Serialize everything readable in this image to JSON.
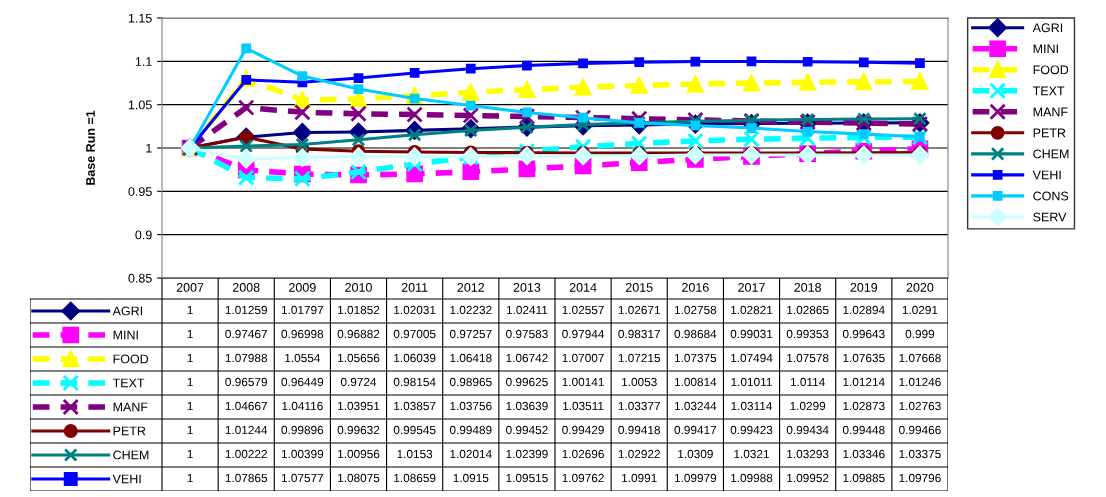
{
  "chart_data": {
    "type": "line",
    "ylabel": "Base Run =1",
    "categories": [
      "2007",
      "2008",
      "2009",
      "2010",
      "2011",
      "2012",
      "2013",
      "2014",
      "2015",
      "2016",
      "2017",
      "2018",
      "2019",
      "2020"
    ],
    "ylim": [
      0.85,
      1.15
    ],
    "yticks": [
      0.85,
      0.9,
      0.95,
      1,
      1.05,
      1.1,
      1.15
    ],
    "grid": "y",
    "legend": "right",
    "series": [
      {
        "name": "AGRI",
        "color": "#000080",
        "marker": "diamond",
        "line_style": "solid",
        "values": [
          1,
          1.01259,
          1.01797,
          1.01852,
          1.02031,
          1.02232,
          1.02411,
          1.02557,
          1.02671,
          1.02758,
          1.02821,
          1.02865,
          1.02894,
          1.0291
        ],
        "value_labels": [
          "1",
          "1.01259",
          "1.01797",
          "1.01852",
          "1.02031",
          "1.02232",
          "1.02411",
          "1.02557",
          "1.02671",
          "1.02758",
          "1.02821",
          "1.02865",
          "1.02894",
          "1.0291"
        ]
      },
      {
        "name": "MINI",
        "color": "#ff00ff",
        "marker": "square",
        "line_style": "dashed",
        "values": [
          1,
          0.97467,
          0.96998,
          0.96882,
          0.97005,
          0.97257,
          0.97583,
          0.97944,
          0.98317,
          0.98684,
          0.99031,
          0.99353,
          0.99643,
          0.999
        ],
        "value_labels": [
          "1",
          "0.97467",
          "0.96998",
          "0.96882",
          "0.97005",
          "0.97257",
          "0.97583",
          "0.97944",
          "0.98317",
          "0.98684",
          "0.99031",
          "0.99353",
          "0.99643",
          "0.999"
        ]
      },
      {
        "name": "FOOD",
        "color": "#ffff00",
        "marker": "triangle",
        "line_style": "dashed",
        "values": [
          1,
          1.07988,
          1.0554,
          1.05656,
          1.06039,
          1.06418,
          1.06742,
          1.07007,
          1.07215,
          1.07375,
          1.07494,
          1.07578,
          1.07635,
          1.07668
        ],
        "value_labels": [
          "1",
          "1.07988",
          "1.0554",
          "1.05656",
          "1.06039",
          "1.06418",
          "1.06742",
          "1.07007",
          "1.07215",
          "1.07375",
          "1.07494",
          "1.07578",
          "1.07635",
          "1.07668"
        ]
      },
      {
        "name": "TEXT",
        "color": "#00ffff",
        "marker": "cross",
        "line_style": "dashed",
        "values": [
          1,
          0.96579,
          0.96449,
          0.9724,
          0.98154,
          0.98965,
          0.99625,
          1.00141,
          1.0053,
          1.00814,
          1.01011,
          1.0114,
          1.01214,
          1.01246
        ],
        "value_labels": [
          "1",
          "0.96579",
          "0.96449",
          "0.9724",
          "0.98154",
          "0.98965",
          "0.99625",
          "1.00141",
          "1.0053",
          "1.00814",
          "1.01011",
          "1.0114",
          "1.01214",
          "1.01246"
        ]
      },
      {
        "name": "MANF",
        "color": "#800080",
        "marker": "cross",
        "line_style": "dashed",
        "values": [
          1,
          1.04667,
          1.04116,
          1.03951,
          1.03857,
          1.03756,
          1.03639,
          1.03511,
          1.03377,
          1.03244,
          1.03114,
          1.0299,
          1.02873,
          1.02763
        ],
        "value_labels": [
          "1",
          "1.04667",
          "1.04116",
          "1.03951",
          "1.03857",
          "1.03756",
          "1.03639",
          "1.03511",
          "1.03377",
          "1.03244",
          "1.03114",
          "1.0299",
          "1.02873",
          "1.02763"
        ]
      },
      {
        "name": "PETR",
        "color": "#800000",
        "marker": "circle",
        "line_style": "solid",
        "values": [
          1,
          1.01244,
          0.99896,
          0.99632,
          0.99545,
          0.99489,
          0.99452,
          0.99429,
          0.99418,
          0.99417,
          0.99423,
          0.99434,
          0.99448,
          0.99466
        ],
        "value_labels": [
          "1",
          "1.01244",
          "0.99896",
          "0.99632",
          "0.99545",
          "0.99489",
          "0.99452",
          "0.99429",
          "0.99418",
          "0.99417",
          "0.99423",
          "0.99434",
          "0.99448",
          "0.99466"
        ]
      },
      {
        "name": "CHEM",
        "color": "#008080",
        "marker": "cross",
        "line_style": "solid",
        "values": [
          1,
          1.00222,
          1.00399,
          1.00956,
          1.0153,
          1.02014,
          1.02399,
          1.02696,
          1.02922,
          1.0309,
          1.0321,
          1.03293,
          1.03346,
          1.03375
        ],
        "value_labels": [
          "1",
          "1.00222",
          "1.00399",
          "1.00956",
          "1.0153",
          "1.02014",
          "1.02399",
          "1.02696",
          "1.02922",
          "1.0309",
          "1.0321",
          "1.03293",
          "1.03346",
          "1.03375"
        ]
      },
      {
        "name": "VEHI",
        "color": "#0000ff",
        "marker": "square",
        "line_style": "solid",
        "values": [
          1,
          1.07865,
          1.07577,
          1.08075,
          1.08659,
          1.0915,
          1.09515,
          1.09762,
          1.0991,
          1.09979,
          1.09988,
          1.09952,
          1.09885,
          1.09796
        ],
        "value_labels": [
          "1",
          "1.07865",
          "1.07577",
          "1.08075",
          "1.08659",
          "1.0915",
          "1.09515",
          "1.09762",
          "1.0991",
          "1.09979",
          "1.09988",
          "1.09952",
          "1.09885",
          "1.09796"
        ]
      },
      {
        "name": "CONS",
        "color": "#00ccff",
        "marker": "square",
        "line_style": "solid",
        "values": [
          1,
          1.115,
          1.083,
          1.068,
          1.057,
          1.049,
          1.041,
          1.035,
          1.029,
          1.026,
          1.023,
          1.019,
          1.016,
          1.013
        ]
      },
      {
        "name": "SERV",
        "color": "#ccffff",
        "marker": "diamond",
        "line_style": "solid",
        "values": [
          1,
          0.987,
          0.989,
          0.99,
          0.99,
          0.99,
          0.991,
          0.991,
          0.991,
          0.992,
          0.992,
          0.992,
          0.992,
          0.992
        ]
      }
    ]
  }
}
